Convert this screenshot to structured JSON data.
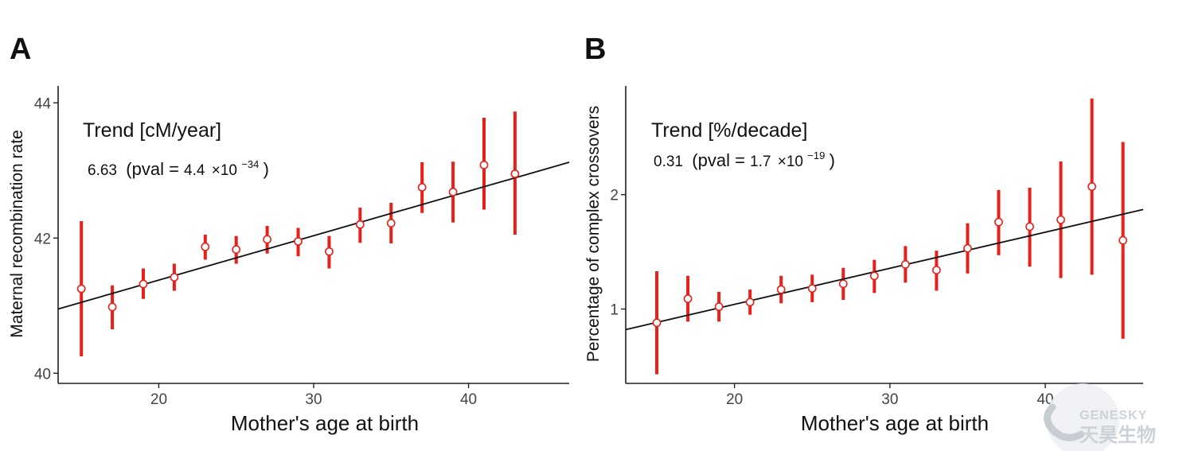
{
  "colors": {
    "points": "#e8201a",
    "trend": "#111111",
    "axis": "#222222"
  },
  "watermark": {
    "text_latin": "GENESKY",
    "text_cn": "天昊生物"
  },
  "chart_data": [
    {
      "panel": "A",
      "type": "scatter",
      "xlabel": "Mother's age at birth",
      "ylabel": "Maternal recombination rate",
      "xlim": [
        13.5,
        46.5
      ],
      "ylim": [
        39.85,
        44.25
      ],
      "xticks": [
        20,
        30,
        40
      ],
      "yticks": [
        40,
        42,
        44
      ],
      "annotation": {
        "title": "Trend [cM/year]",
        "value": "6.63",
        "pval_prefix": "(pval = ",
        "pval_mantissa": "4.4",
        "pval_times": "×10",
        "pval_exponent": "−34",
        "pval_suffix": ")"
      },
      "trend_line": {
        "x": [
          13.5,
          46.5
        ],
        "y": [
          40.95,
          43.12
        ]
      },
      "points": [
        {
          "x": 15,
          "y": 41.25,
          "lo": 40.25,
          "hi": 42.25
        },
        {
          "x": 17,
          "y": 40.98,
          "lo": 40.65,
          "hi": 41.3
        },
        {
          "x": 19,
          "y": 41.32,
          "lo": 41.1,
          "hi": 41.55
        },
        {
          "x": 21,
          "y": 41.42,
          "lo": 41.22,
          "hi": 41.62
        },
        {
          "x": 23,
          "y": 41.87,
          "lo": 41.68,
          "hi": 42.05
        },
        {
          "x": 25,
          "y": 41.83,
          "lo": 41.62,
          "hi": 42.03
        },
        {
          "x": 27,
          "y": 41.98,
          "lo": 41.77,
          "hi": 42.18
        },
        {
          "x": 29,
          "y": 41.95,
          "lo": 41.73,
          "hi": 42.15
        },
        {
          "x": 31,
          "y": 41.8,
          "lo": 41.55,
          "hi": 42.03
        },
        {
          "x": 33,
          "y": 42.2,
          "lo": 41.93,
          "hi": 42.45
        },
        {
          "x": 35,
          "y": 42.22,
          "lo": 41.92,
          "hi": 42.52
        },
        {
          "x": 37,
          "y": 42.75,
          "lo": 42.37,
          "hi": 43.12
        },
        {
          "x": 39,
          "y": 42.68,
          "lo": 42.23,
          "hi": 43.13
        },
        {
          "x": 41,
          "y": 43.08,
          "lo": 42.42,
          "hi": 43.78
        },
        {
          "x": 43,
          "y": 42.95,
          "lo": 42.05,
          "hi": 43.87
        }
      ]
    },
    {
      "panel": "B",
      "type": "scatter",
      "xlabel": "Mother's age at birth",
      "ylabel": "Percentage of complex crossovers",
      "xlim": [
        13.0,
        46.3
      ],
      "ylim": [
        0.35,
        2.95
      ],
      "xticks": [
        20,
        30,
        40
      ],
      "yticks": [
        1,
        2
      ],
      "annotation": {
        "title": "Trend [%/decade]",
        "value": "0.31",
        "pval_prefix": "(pval = ",
        "pval_mantissa": "1.7",
        "pval_times": "×10",
        "pval_exponent": "−19",
        "pval_suffix": ")"
      },
      "trend_line": {
        "x": [
          13.0,
          46.3
        ],
        "y": [
          0.82,
          1.87
        ]
      },
      "points": [
        {
          "x": 15,
          "y": 0.88,
          "lo": 0.43,
          "hi": 1.33
        },
        {
          "x": 17,
          "y": 1.09,
          "lo": 0.89,
          "hi": 1.29
        },
        {
          "x": 19,
          "y": 1.02,
          "lo": 0.89,
          "hi": 1.15
        },
        {
          "x": 21,
          "y": 1.06,
          "lo": 0.95,
          "hi": 1.17
        },
        {
          "x": 23,
          "y": 1.17,
          "lo": 1.05,
          "hi": 1.29
        },
        {
          "x": 25,
          "y": 1.18,
          "lo": 1.06,
          "hi": 1.3
        },
        {
          "x": 27,
          "y": 1.22,
          "lo": 1.08,
          "hi": 1.36
        },
        {
          "x": 29,
          "y": 1.29,
          "lo": 1.14,
          "hi": 1.43
        },
        {
          "x": 31,
          "y": 1.39,
          "lo": 1.23,
          "hi": 1.55
        },
        {
          "x": 33,
          "y": 1.34,
          "lo": 1.16,
          "hi": 1.51
        },
        {
          "x": 35,
          "y": 1.53,
          "lo": 1.31,
          "hi": 1.75
        },
        {
          "x": 37,
          "y": 1.76,
          "lo": 1.47,
          "hi": 2.04
        },
        {
          "x": 39,
          "y": 1.72,
          "lo": 1.37,
          "hi": 2.06
        },
        {
          "x": 41,
          "y": 1.78,
          "lo": 1.27,
          "hi": 2.29
        },
        {
          "x": 43,
          "y": 2.07,
          "lo": 1.3,
          "hi": 2.84
        },
        {
          "x": 45,
          "y": 1.6,
          "lo": 0.74,
          "hi": 2.46
        }
      ]
    }
  ]
}
